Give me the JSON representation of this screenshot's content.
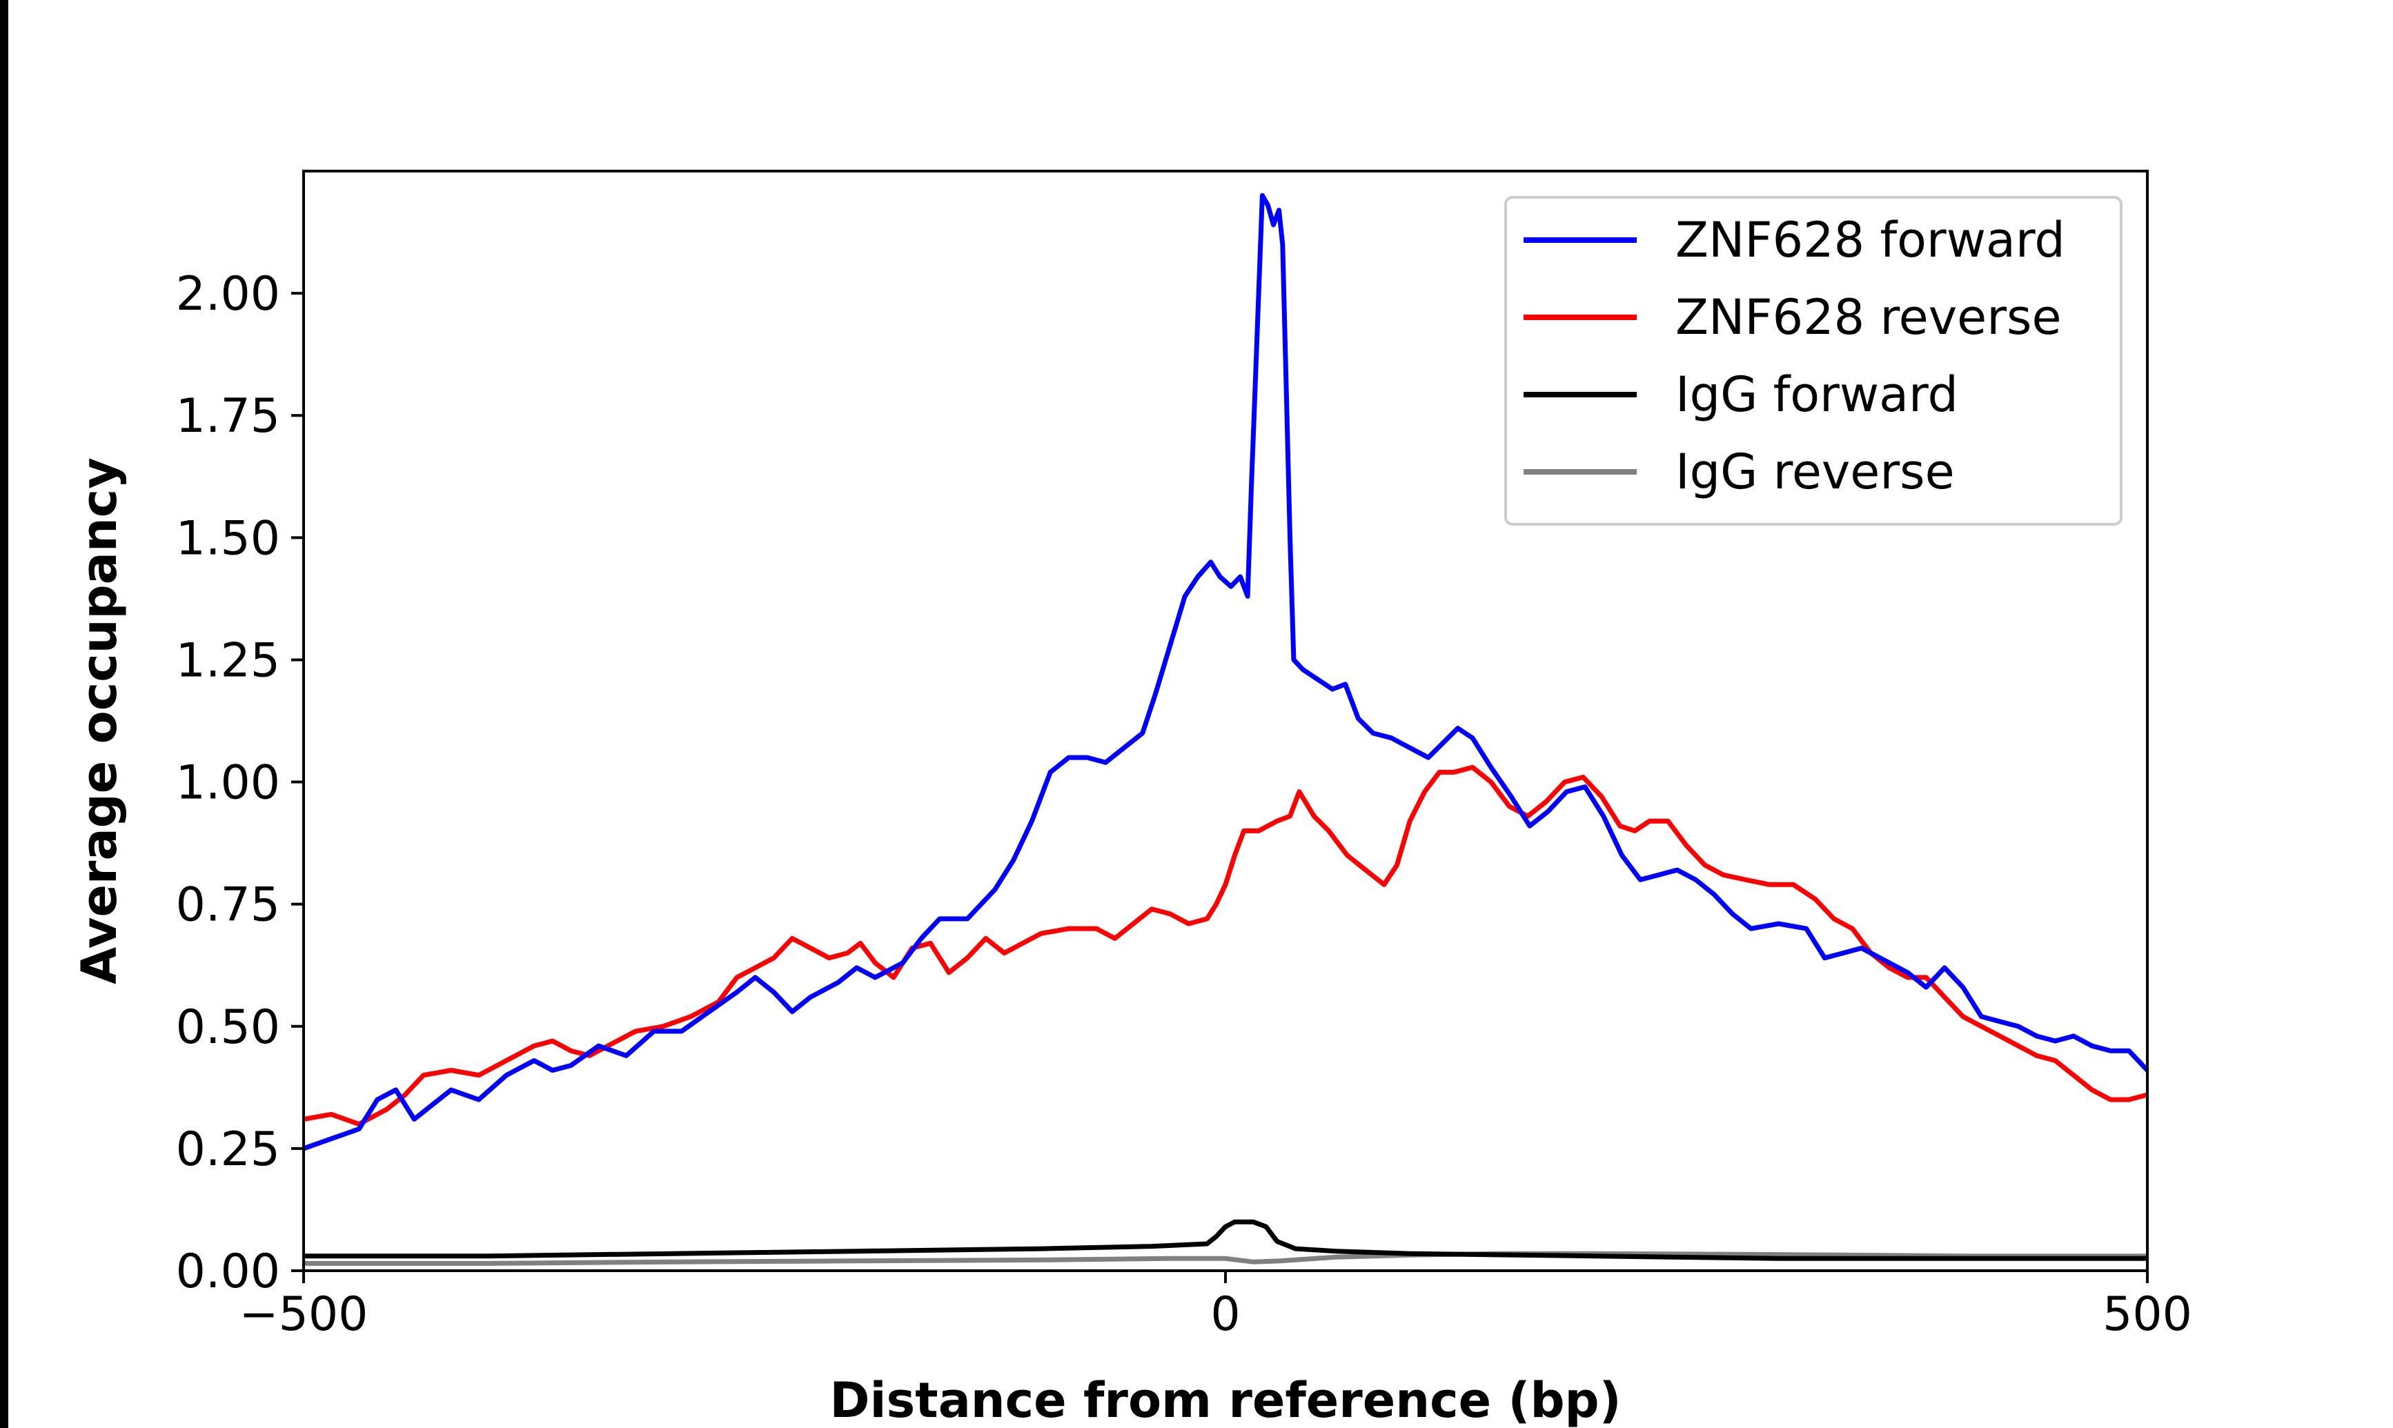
{
  "chart_data": {
    "type": "line",
    "title": "",
    "xlabel": "Distance from reference (bp)",
    "ylabel": "Average occupancy",
    "xlim": [
      -500,
      500
    ],
    "ylim": [
      0,
      2.25
    ],
    "xticks": [
      -500,
      0,
      500
    ],
    "xtick_labels": [
      "−500",
      "0",
      "500"
    ],
    "yticks": [
      0,
      0.25,
      0.5,
      0.75,
      1.0,
      1.25,
      1.5,
      1.75,
      2.0
    ],
    "ytick_labels": [
      "0.00",
      "0.25",
      "0.50",
      "0.75",
      "1.00",
      "1.25",
      "1.50",
      "1.75",
      "2.00"
    ],
    "grid": false,
    "legend_position": "top-right",
    "series": [
      {
        "name": "ZNF628 forward",
        "color": "#0000ff",
        "points": [
          [
            -500,
            0.25
          ],
          [
            -485,
            0.27
          ],
          [
            -470,
            0.29
          ],
          [
            -460,
            0.35
          ],
          [
            -450,
            0.37
          ],
          [
            -440,
            0.31
          ],
          [
            -430,
            0.34
          ],
          [
            -420,
            0.37
          ],
          [
            -405,
            0.35
          ],
          [
            -390,
            0.4
          ],
          [
            -375,
            0.43
          ],
          [
            -365,
            0.41
          ],
          [
            -355,
            0.42
          ],
          [
            -340,
            0.46
          ],
          [
            -325,
            0.44
          ],
          [
            -310,
            0.49
          ],
          [
            -295,
            0.49
          ],
          [
            -280,
            0.53
          ],
          [
            -265,
            0.57
          ],
          [
            -255,
            0.6
          ],
          [
            -245,
            0.57
          ],
          [
            -235,
            0.53
          ],
          [
            -225,
            0.56
          ],
          [
            -210,
            0.59
          ],
          [
            -200,
            0.62
          ],
          [
            -190,
            0.6
          ],
          [
            -175,
            0.63
          ],
          [
            -165,
            0.68
          ],
          [
            -155,
            0.72
          ],
          [
            -140,
            0.72
          ],
          [
            -125,
            0.78
          ],
          [
            -115,
            0.84
          ],
          [
            -105,
            0.92
          ],
          [
            -95,
            1.02
          ],
          [
            -85,
            1.05
          ],
          [
            -75,
            1.05
          ],
          [
            -65,
            1.04
          ],
          [
            -55,
            1.07
          ],
          [
            -45,
            1.1
          ],
          [
            -38,
            1.18
          ],
          [
            -30,
            1.28
          ],
          [
            -22,
            1.38
          ],
          [
            -15,
            1.42
          ],
          [
            -8,
            1.45
          ],
          [
            -3,
            1.42
          ],
          [
            3,
            1.4
          ],
          [
            8,
            1.42
          ],
          [
            12,
            1.38
          ],
          [
            14,
            1.6
          ],
          [
            16,
            1.8
          ],
          [
            18,
            2.0
          ],
          [
            20,
            2.2
          ],
          [
            23,
            2.18
          ],
          [
            26,
            2.14
          ],
          [
            29,
            2.17
          ],
          [
            31,
            2.1
          ],
          [
            33,
            1.8
          ],
          [
            35,
            1.5
          ],
          [
            37,
            1.25
          ],
          [
            42,
            1.23
          ],
          [
            50,
            1.21
          ],
          [
            58,
            1.19
          ],
          [
            65,
            1.2
          ],
          [
            72,
            1.13
          ],
          [
            80,
            1.1
          ],
          [
            90,
            1.09
          ],
          [
            100,
            1.07
          ],
          [
            110,
            1.05
          ],
          [
            118,
            1.08
          ],
          [
            126,
            1.11
          ],
          [
            134,
            1.09
          ],
          [
            144,
            1.03
          ],
          [
            155,
            0.97
          ],
          [
            165,
            0.91
          ],
          [
            175,
            0.94
          ],
          [
            185,
            0.98
          ],
          [
            195,
            0.99
          ],
          [
            205,
            0.93
          ],
          [
            215,
            0.85
          ],
          [
            225,
            0.8
          ],
          [
            235,
            0.81
          ],
          [
            245,
            0.82
          ],
          [
            255,
            0.8
          ],
          [
            265,
            0.77
          ],
          [
            275,
            0.73
          ],
          [
            285,
            0.7
          ],
          [
            300,
            0.71
          ],
          [
            315,
            0.7
          ],
          [
            325,
            0.64
          ],
          [
            335,
            0.65
          ],
          [
            345,
            0.66
          ],
          [
            355,
            0.64
          ],
          [
            370,
            0.61
          ],
          [
            380,
            0.58
          ],
          [
            390,
            0.62
          ],
          [
            400,
            0.58
          ],
          [
            410,
            0.52
          ],
          [
            420,
            0.51
          ],
          [
            430,
            0.5
          ],
          [
            440,
            0.48
          ],
          [
            450,
            0.47
          ],
          [
            460,
            0.48
          ],
          [
            470,
            0.46
          ],
          [
            480,
            0.45
          ],
          [
            490,
            0.45
          ],
          [
            500,
            0.41
          ]
        ]
      },
      {
        "name": "ZNF628 reverse",
        "color": "#ff0000",
        "points": [
          [
            -500,
            0.31
          ],
          [
            -485,
            0.32
          ],
          [
            -470,
            0.3
          ],
          [
            -455,
            0.33
          ],
          [
            -445,
            0.36
          ],
          [
            -435,
            0.4
          ],
          [
            -420,
            0.41
          ],
          [
            -405,
            0.4
          ],
          [
            -390,
            0.43
          ],
          [
            -375,
            0.46
          ],
          [
            -365,
            0.47
          ],
          [
            -355,
            0.45
          ],
          [
            -345,
            0.44
          ],
          [
            -335,
            0.46
          ],
          [
            -320,
            0.49
          ],
          [
            -305,
            0.5
          ],
          [
            -290,
            0.52
          ],
          [
            -275,
            0.55
          ],
          [
            -265,
            0.6
          ],
          [
            -255,
            0.62
          ],
          [
            -245,
            0.64
          ],
          [
            -235,
            0.68
          ],
          [
            -225,
            0.66
          ],
          [
            -215,
            0.64
          ],
          [
            -205,
            0.65
          ],
          [
            -198,
            0.67
          ],
          [
            -190,
            0.63
          ],
          [
            -180,
            0.6
          ],
          [
            -170,
            0.66
          ],
          [
            -160,
            0.67
          ],
          [
            -150,
            0.61
          ],
          [
            -140,
            0.64
          ],
          [
            -130,
            0.68
          ],
          [
            -120,
            0.65
          ],
          [
            -110,
            0.67
          ],
          [
            -100,
            0.69
          ],
          [
            -85,
            0.7
          ],
          [
            -70,
            0.7
          ],
          [
            -60,
            0.68
          ],
          [
            -50,
            0.71
          ],
          [
            -40,
            0.74
          ],
          [
            -30,
            0.73
          ],
          [
            -20,
            0.71
          ],
          [
            -10,
            0.72
          ],
          [
            -5,
            0.75
          ],
          [
            0,
            0.79
          ],
          [
            5,
            0.85
          ],
          [
            10,
            0.9
          ],
          [
            18,
            0.9
          ],
          [
            28,
            0.92
          ],
          [
            35,
            0.93
          ],
          [
            40,
            0.98
          ],
          [
            48,
            0.93
          ],
          [
            56,
            0.9
          ],
          [
            66,
            0.85
          ],
          [
            76,
            0.82
          ],
          [
            86,
            0.79
          ],
          [
            93,
            0.83
          ],
          [
            100,
            0.92
          ],
          [
            108,
            0.98
          ],
          [
            116,
            1.02
          ],
          [
            124,
            1.02
          ],
          [
            134,
            1.03
          ],
          [
            144,
            1.0
          ],
          [
            154,
            0.95
          ],
          [
            164,
            0.93
          ],
          [
            174,
            0.96
          ],
          [
            184,
            1.0
          ],
          [
            194,
            1.01
          ],
          [
            204,
            0.97
          ],
          [
            214,
            0.91
          ],
          [
            222,
            0.9
          ],
          [
            230,
            0.92
          ],
          [
            240,
            0.92
          ],
          [
            250,
            0.87
          ],
          [
            260,
            0.83
          ],
          [
            270,
            0.81
          ],
          [
            282,
            0.8
          ],
          [
            295,
            0.79
          ],
          [
            308,
            0.79
          ],
          [
            320,
            0.76
          ],
          [
            330,
            0.72
          ],
          [
            340,
            0.7
          ],
          [
            350,
            0.65
          ],
          [
            360,
            0.62
          ],
          [
            370,
            0.6
          ],
          [
            380,
            0.6
          ],
          [
            390,
            0.56
          ],
          [
            400,
            0.52
          ],
          [
            410,
            0.5
          ],
          [
            420,
            0.48
          ],
          [
            430,
            0.46
          ],
          [
            440,
            0.44
          ],
          [
            450,
            0.43
          ],
          [
            460,
            0.4
          ],
          [
            470,
            0.37
          ],
          [
            480,
            0.35
          ],
          [
            490,
            0.35
          ],
          [
            500,
            0.36
          ]
        ]
      },
      {
        "name": "IgG forward",
        "color": "#000000",
        "points": [
          [
            -500,
            0.03
          ],
          [
            -400,
            0.03
          ],
          [
            -300,
            0.035
          ],
          [
            -200,
            0.04
          ],
          [
            -100,
            0.045
          ],
          [
            -40,
            0.05
          ],
          [
            -10,
            0.055
          ],
          [
            -5,
            0.07
          ],
          [
            0,
            0.09
          ],
          [
            5,
            0.1
          ],
          [
            15,
            0.1
          ],
          [
            22,
            0.09
          ],
          [
            28,
            0.06
          ],
          [
            38,
            0.045
          ],
          [
            60,
            0.04
          ],
          [
            100,
            0.035
          ],
          [
            200,
            0.03
          ],
          [
            300,
            0.025
          ],
          [
            400,
            0.025
          ],
          [
            500,
            0.025
          ]
        ]
      },
      {
        "name": "IgG reverse",
        "color": "#808080",
        "points": [
          [
            -500,
            0.015
          ],
          [
            -400,
            0.015
          ],
          [
            -300,
            0.018
          ],
          [
            -200,
            0.02
          ],
          [
            -100,
            0.022
          ],
          [
            -30,
            0.025
          ],
          [
            0,
            0.025
          ],
          [
            15,
            0.018
          ],
          [
            30,
            0.02
          ],
          [
            60,
            0.028
          ],
          [
            100,
            0.032
          ],
          [
            150,
            0.035
          ],
          [
            200,
            0.035
          ],
          [
            300,
            0.033
          ],
          [
            400,
            0.03
          ],
          [
            500,
            0.03
          ]
        ]
      }
    ]
  }
}
